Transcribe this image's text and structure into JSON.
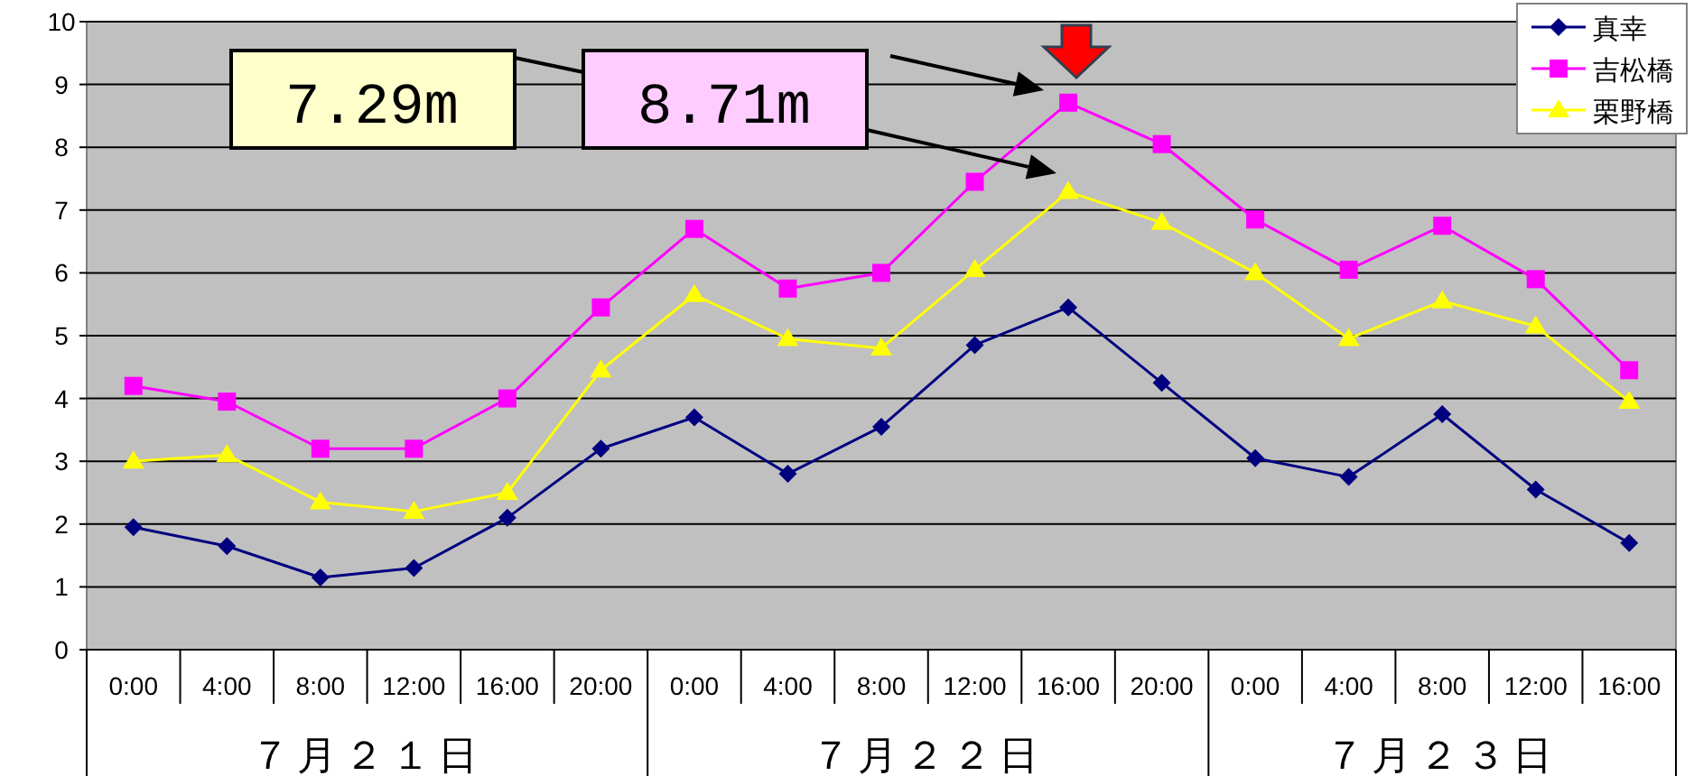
{
  "chart_data": {
    "type": "line",
    "categories": [
      "0:00",
      "4:00",
      "8:00",
      "12:00",
      "16:00",
      "20:00",
      "0:00",
      "4:00",
      "8:00",
      "12:00",
      "16:00",
      "20:00",
      "0:00",
      "4:00",
      "8:00",
      "12:00",
      "16:00"
    ],
    "series": [
      {
        "name": "真幸",
        "color": "#000080",
        "marker": "diamond",
        "values": [
          1.95,
          1.65,
          1.15,
          1.3,
          2.1,
          3.2,
          3.7,
          2.8,
          3.55,
          4.85,
          5.45,
          4.25,
          3.05,
          2.75,
          3.75,
          2.55,
          1.7
        ]
      },
      {
        "name": "吉松橋",
        "color": "#ff00ff",
        "marker": "square",
        "values": [
          4.2,
          3.95,
          3.2,
          3.2,
          4.0,
          5.45,
          6.7,
          5.75,
          6.0,
          7.45,
          8.71,
          8.05,
          6.85,
          6.05,
          6.75,
          5.9,
          4.45
        ]
      },
      {
        "name": "栗野橋",
        "color": "#ffff00",
        "marker": "triangle",
        "values": [
          3.0,
          3.1,
          2.35,
          2.2,
          2.5,
          4.45,
          5.65,
          4.95,
          4.8,
          6.05,
          7.29,
          6.8,
          6.0,
          4.95,
          5.55,
          5.15,
          3.95
        ]
      }
    ],
    "ylim": [
      0,
      10
    ],
    "yticks": [
      0,
      1,
      2,
      3,
      4,
      5,
      6,
      7,
      8,
      9,
      10
    ],
    "grid": "y",
    "legend": "top right",
    "line_style": "solid",
    "annotations": [
      "7.29m",
      "8.71m",
      "７月２１日",
      "７月２２日",
      "７月２３日"
    ]
  }
}
